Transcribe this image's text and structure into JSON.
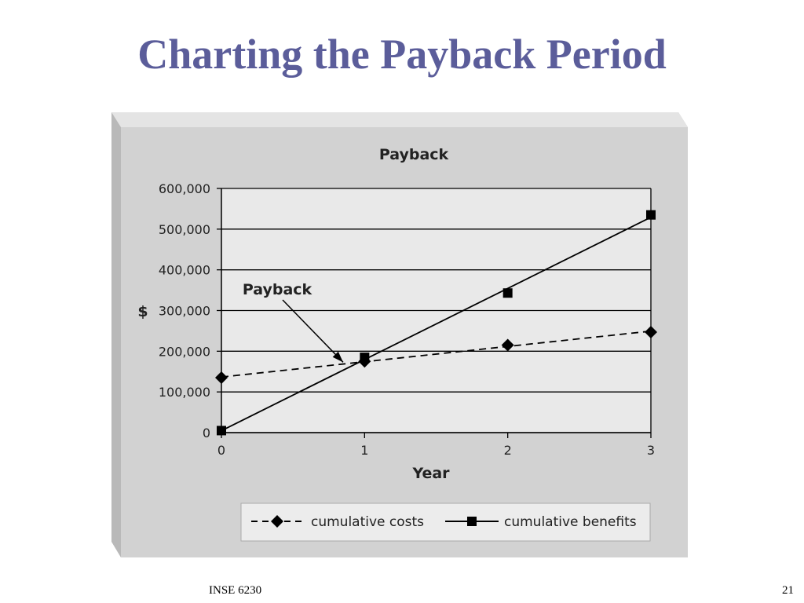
{
  "slide": {
    "title": "Charting the Payback Period",
    "footer_left": "INSE 6230",
    "footer_right": "21"
  },
  "chart_data": {
    "type": "line",
    "title": "Payback",
    "xlabel": "Year",
    "ylabel": "$",
    "x_ticks": [
      "0",
      "1",
      "2",
      "3"
    ],
    "y_ticks": [
      "0",
      "100,000",
      "200,000",
      "300,000",
      "400,000",
      "500,000",
      "600,000"
    ],
    "xlim": [
      0,
      3
    ],
    "ylim": [
      0,
      600000
    ],
    "grid": "horizontal",
    "legend_position": "bottom",
    "series": [
      {
        "name": "cumulative costs",
        "style": "dashed",
        "marker": "diamond",
        "color": "#000000",
        "points": [
          {
            "x": 0,
            "y": 135000
          },
          {
            "x": 1,
            "y": 175000
          },
          {
            "x": 2,
            "y": 215000
          },
          {
            "x": 3,
            "y": 247000
          }
        ]
      },
      {
        "name": "cumulative benefits",
        "style": "solid",
        "marker": "square",
        "color": "#000000",
        "points": [
          {
            "x": 0,
            "y": 5000
          },
          {
            "x": 1,
            "y": 185000
          },
          {
            "x": 2,
            "y": 343000
          },
          {
            "x": 3,
            "y": 535000
          }
        ]
      }
    ],
    "annotations": [
      {
        "text": "Payback",
        "x": 0.85,
        "y": 173000
      }
    ],
    "colors": {
      "outer_frame": "#d2d2d2",
      "outer_frame_shadow": "#b9b9b9",
      "plot_background": "#e9e9e9",
      "gridline": "#000000"
    }
  }
}
